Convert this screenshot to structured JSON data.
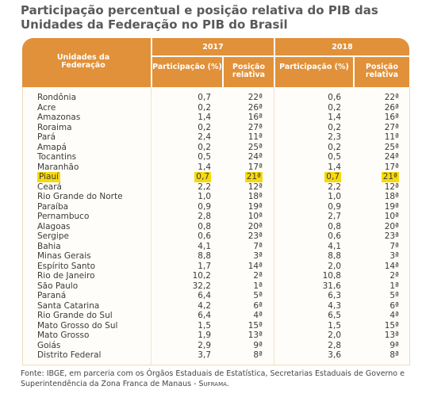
{
  "header": {
    "title_lines": [
      "Participação percentual e posição relativa do PIB das",
      "Unidades da Federação no PIB do Brasil"
    ]
  },
  "table": {
    "row_header": "Unidades da Federação",
    "years": [
      "2017",
      "2018"
    ],
    "subheaders": [
      [
        "Participação (%)",
        "Posição relativa"
      ],
      [
        "Participação (%)",
        "Posição relativa"
      ]
    ],
    "highlight_row": 8,
    "rows": [
      [
        "Rondônia",
        "0,7",
        "22ª",
        "0,6",
        "22ª"
      ],
      [
        "Acre",
        "0,2",
        "26ª",
        "0,2",
        "26ª"
      ],
      [
        "Amazonas",
        "1,4",
        "16ª",
        "1,4",
        "16ª"
      ],
      [
        "Roraima",
        "0,2",
        "27ª",
        "0,2",
        "27ª"
      ],
      [
        "Pará",
        "2,4",
        "11ª",
        "2,3",
        "11ª"
      ],
      [
        "Amapá",
        "0,2",
        "25ª",
        "0,2",
        "25ª"
      ],
      [
        "Tocantins",
        "0,5",
        "24ª",
        "0,5",
        "24ª"
      ],
      [
        "Maranhão",
        "1,4",
        "17ª",
        "1,4",
        "17ª"
      ],
      [
        "Piauí",
        "0,7",
        "21ª",
        "0,7",
        "21ª"
      ],
      [
        "Ceará",
        "2,2",
        "12ª",
        "2,2",
        "12ª"
      ],
      [
        "Rio Grande do Norte",
        "1,0",
        "18ª",
        "1,0",
        "18ª"
      ],
      [
        "Paraíba",
        "0,9",
        "19ª",
        "0,9",
        "19ª"
      ],
      [
        "Pernambuco",
        "2,8",
        "10ª",
        "2,7",
        "10ª"
      ],
      [
        "Alagoas",
        "0,8",
        "20ª",
        "0,8",
        "20ª"
      ],
      [
        "Sergipe",
        "0,6",
        "23ª",
        "0,6",
        "23ª"
      ],
      [
        "Bahia",
        "4,1",
        "7ª",
        "4,1",
        "7ª"
      ],
      [
        "Minas Gerais",
        "8,8",
        "3ª",
        "8,8",
        "3ª"
      ],
      [
        "Espírito Santo",
        "1,7",
        "14ª",
        "2,0",
        "14ª"
      ],
      [
        "Rio de Janeiro",
        "10,2",
        "2ª",
        "10,8",
        "2ª"
      ],
      [
        "São Paulo",
        "32,2",
        "1ª",
        "31,6",
        "1ª"
      ],
      [
        "Paraná",
        "6,4",
        "5ª",
        "6,3",
        "5ª"
      ],
      [
        "Santa Catarina",
        "4,2",
        "6ª",
        "4,3",
        "6ª"
      ],
      [
        "Rio Grande do Sul",
        "6,4",
        "4ª",
        "6,5",
        "4ª"
      ],
      [
        "Mato Grosso do Sul",
        "1,5",
        "15ª",
        "1,5",
        "15ª"
      ],
      [
        "Mato Grosso",
        "1,9",
        "13ª",
        "2,0",
        "13ª"
      ],
      [
        "Goiás",
        "2,9",
        "9ª",
        "2,8",
        "9ª"
      ],
      [
        "Distrito Federal",
        "3,7",
        "8ª",
        "3,6",
        "8ª"
      ]
    ]
  },
  "footer": {
    "source": "Fonte: IBGE, em parceria com os Órgãos Estaduais de Estatística, Secretarias Estaduais de Governo e Superintendência da Zona Franca de Manaus -",
    "agency": "Suframa."
  }
}
